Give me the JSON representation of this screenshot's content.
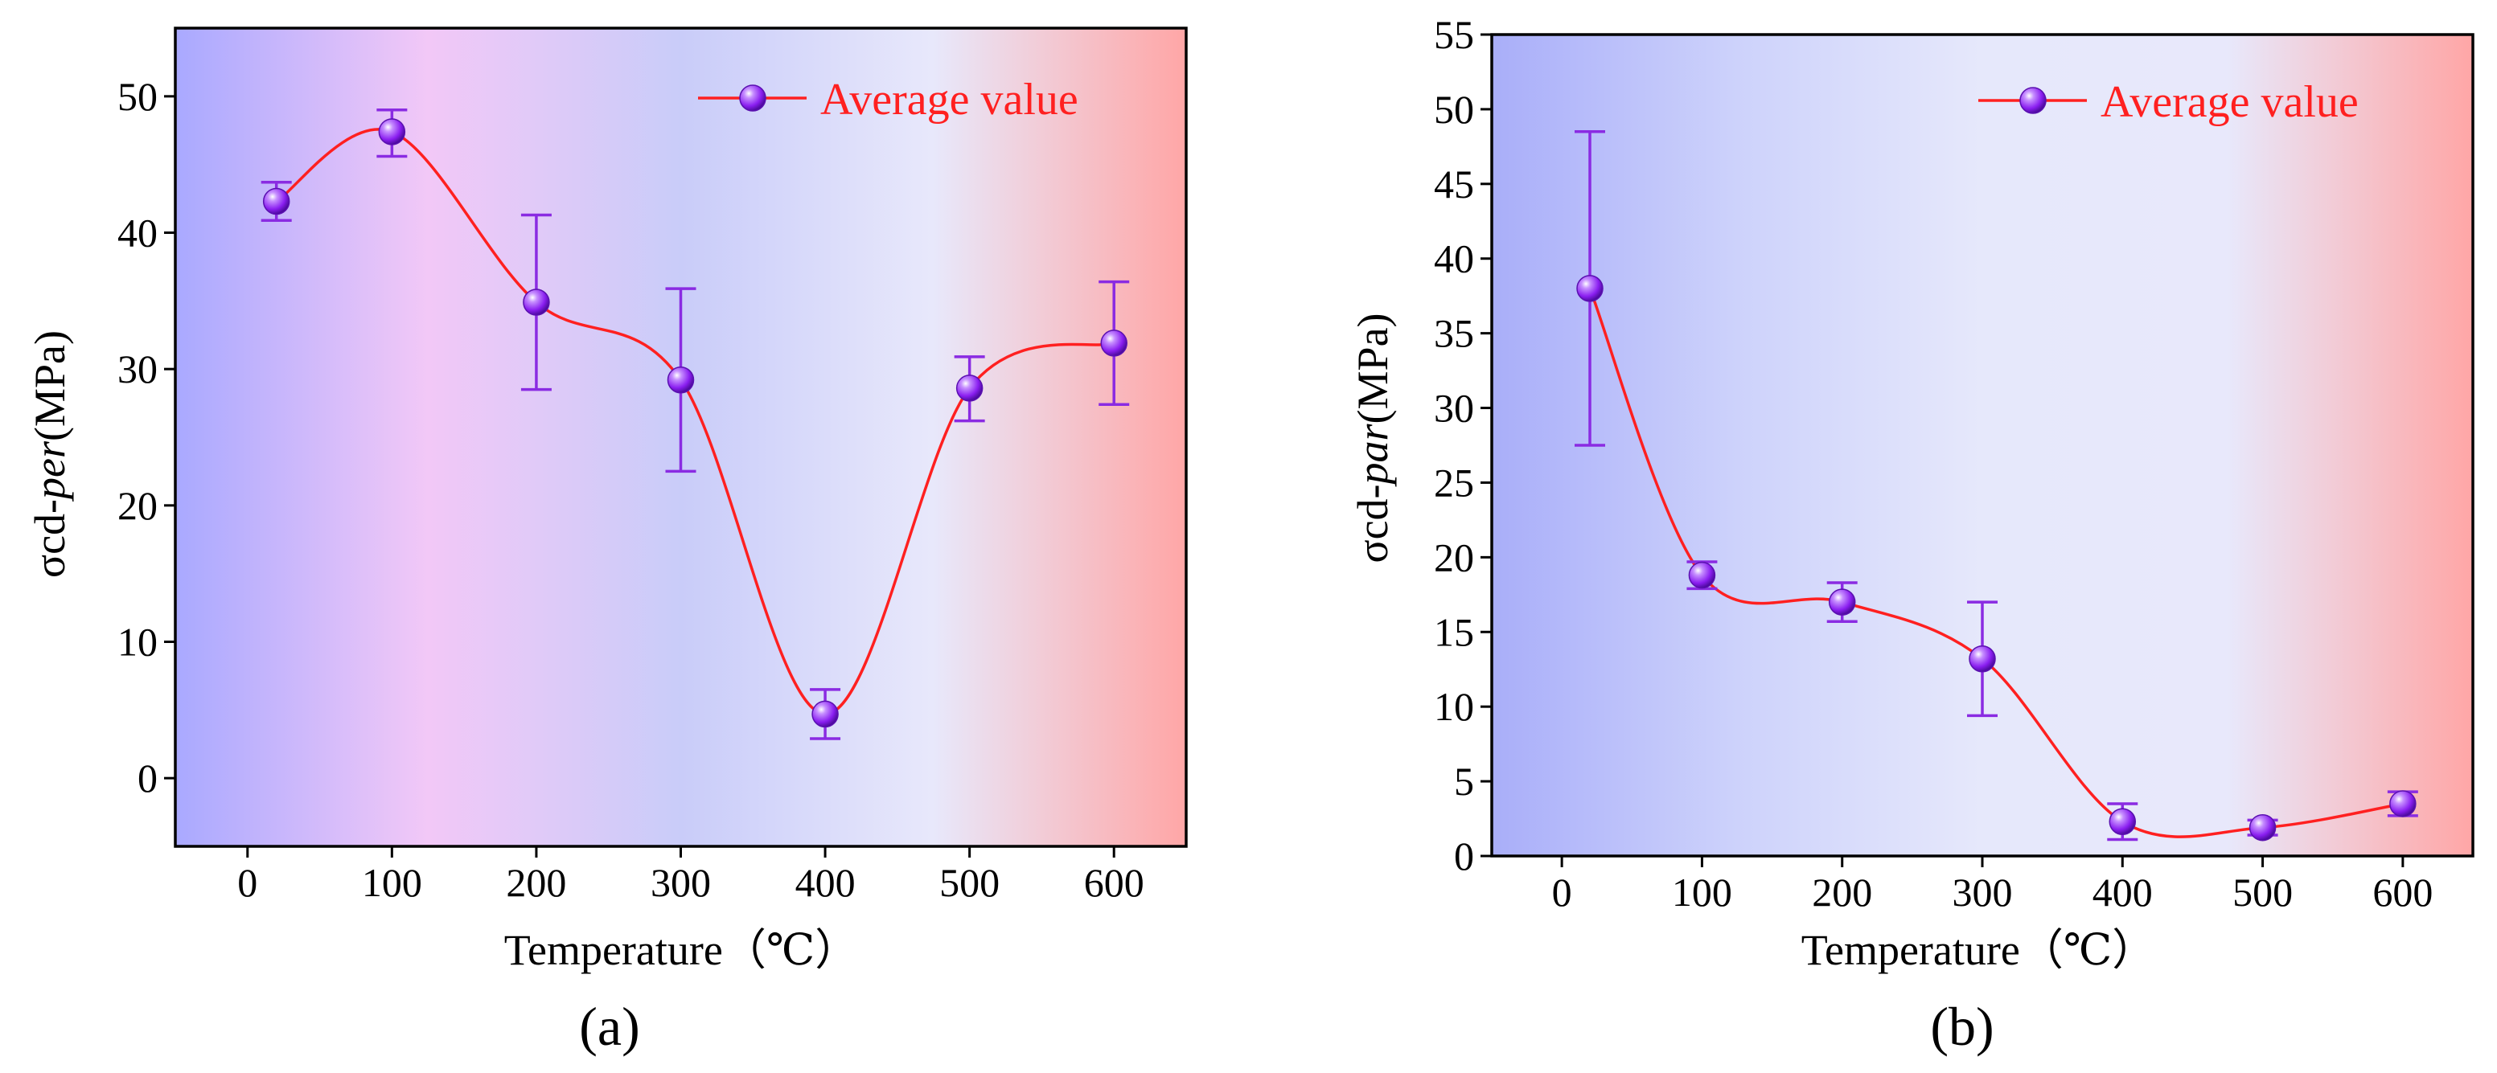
{
  "chart_data": [
    {
      "type": "line",
      "panel_label": "(a)",
      "title": "",
      "xlabel": "Temperature（℃）",
      "ylabel": {
        "prefix": "σcd-",
        "italic": "per",
        "suffix": "(MPa)"
      },
      "xlim": [
        -50,
        650
      ],
      "ylim": [
        -5,
        55
      ],
      "xticks": [
        0,
        100,
        200,
        300,
        400,
        500,
        600
      ],
      "xtick_labels": [
        "0",
        "100",
        "200",
        "300",
        "400",
        "500",
        "600"
      ],
      "yticks": [
        0,
        10,
        20,
        30,
        40,
        50
      ],
      "ytick_labels": [
        "0",
        "10",
        "20",
        "30",
        "40",
        "50"
      ],
      "legend": {
        "label": "Average value",
        "position": "top-right"
      },
      "background_gradient": [
        "#a9a9ff",
        "#f2c8f7",
        "#c9ccf9",
        "#e8e8fb",
        "#ffa6a6"
      ],
      "series": [
        {
          "name": "Average value",
          "color": "#ff2020",
          "marker_color": "#8a1ef0",
          "error_color": "#8a2be2",
          "x": [
            20,
            100,
            200,
            300,
            400,
            500,
            600
          ],
          "y": [
            42.3,
            47.4,
            34.9,
            29.2,
            4.7,
            28.6,
            31.9
          ],
          "err_low": [
            1.4,
            1.8,
            6.4,
            6.7,
            1.8,
            2.4,
            4.5
          ],
          "err_high": [
            1.4,
            1.6,
            6.4,
            6.7,
            1.8,
            2.3,
            4.5
          ]
        }
      ]
    },
    {
      "type": "line",
      "panel_label": "(b)",
      "title": "",
      "xlabel": "Temperature（℃）",
      "ylabel": {
        "prefix": "σcd-",
        "italic": "par",
        "suffix": "(MPa)"
      },
      "xlim": [
        -50,
        650
      ],
      "ylim": [
        0,
        55
      ],
      "xticks": [
        0,
        100,
        200,
        300,
        400,
        500,
        600
      ],
      "xtick_labels": [
        "0",
        "100",
        "200",
        "300",
        "400",
        "500",
        "600"
      ],
      "yticks": [
        0,
        5,
        10,
        15,
        20,
        25,
        30,
        35,
        40,
        45,
        50,
        55
      ],
      "ytick_labels": [
        "0",
        "5",
        "10",
        "15",
        "20",
        "25",
        "30",
        "35",
        "40",
        "45",
        "50",
        "55"
      ],
      "legend": {
        "label": "Average value",
        "position": "top-right"
      },
      "background_gradient": [
        "#a9aef9",
        "#cdd2fb",
        "#e6e8fb",
        "#e8e8fb",
        "#ffa6a6"
      ],
      "series": [
        {
          "name": "Average value",
          "color": "#ff2020",
          "marker_color": "#8a1ef0",
          "error_color": "#8a2be2",
          "x": [
            20,
            100,
            200,
            300,
            400,
            500,
            600
          ],
          "y": [
            38.0,
            18.8,
            17.0,
            13.2,
            2.3,
            1.9,
            3.5
          ],
          "err_low": [
            10.5,
            0.9,
            1.3,
            3.8,
            1.2,
            0.5,
            0.8
          ],
          "err_high": [
            10.5,
            0.9,
            1.3,
            3.8,
            1.2,
            0.5,
            0.8
          ]
        }
      ]
    }
  ]
}
